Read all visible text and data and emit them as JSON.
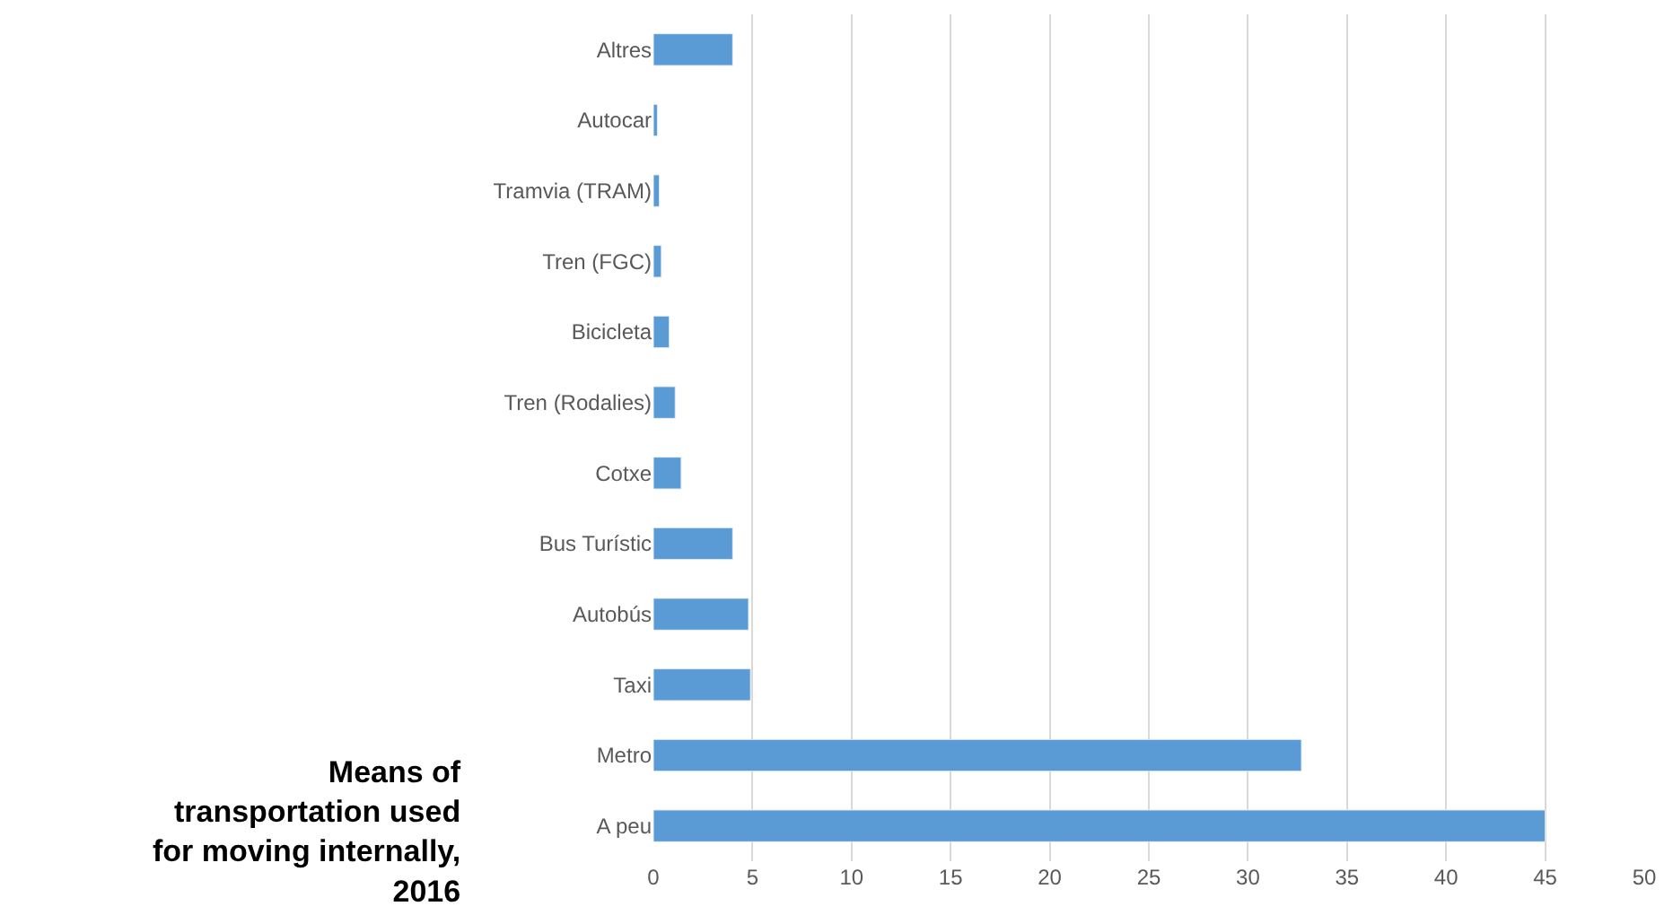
{
  "chart_data": {
    "type": "bar",
    "orientation": "horizontal",
    "title": "Means of transportation used for moving internally, 2016",
    "categories": [
      "Altres",
      "Autocar",
      "Tramvia (TRAM)",
      "Tren (FGC)",
      "Bicicleta",
      "Tren (Rodalies)",
      "Cotxe",
      "Bus Turístic",
      "Autobús",
      "Taxi",
      "Metro",
      "A peu"
    ],
    "values": [
      4.0,
      0.2,
      0.3,
      0.4,
      0.8,
      1.1,
      1.4,
      4.0,
      4.8,
      4.9,
      32.7,
      45.0
    ],
    "color": "#5b9bd5",
    "xlim": [
      0,
      50
    ],
    "xticks": [
      0,
      5,
      10,
      15,
      20,
      25,
      30,
      35,
      40,
      45,
      50
    ],
    "grid": "x",
    "legend": false
  }
}
